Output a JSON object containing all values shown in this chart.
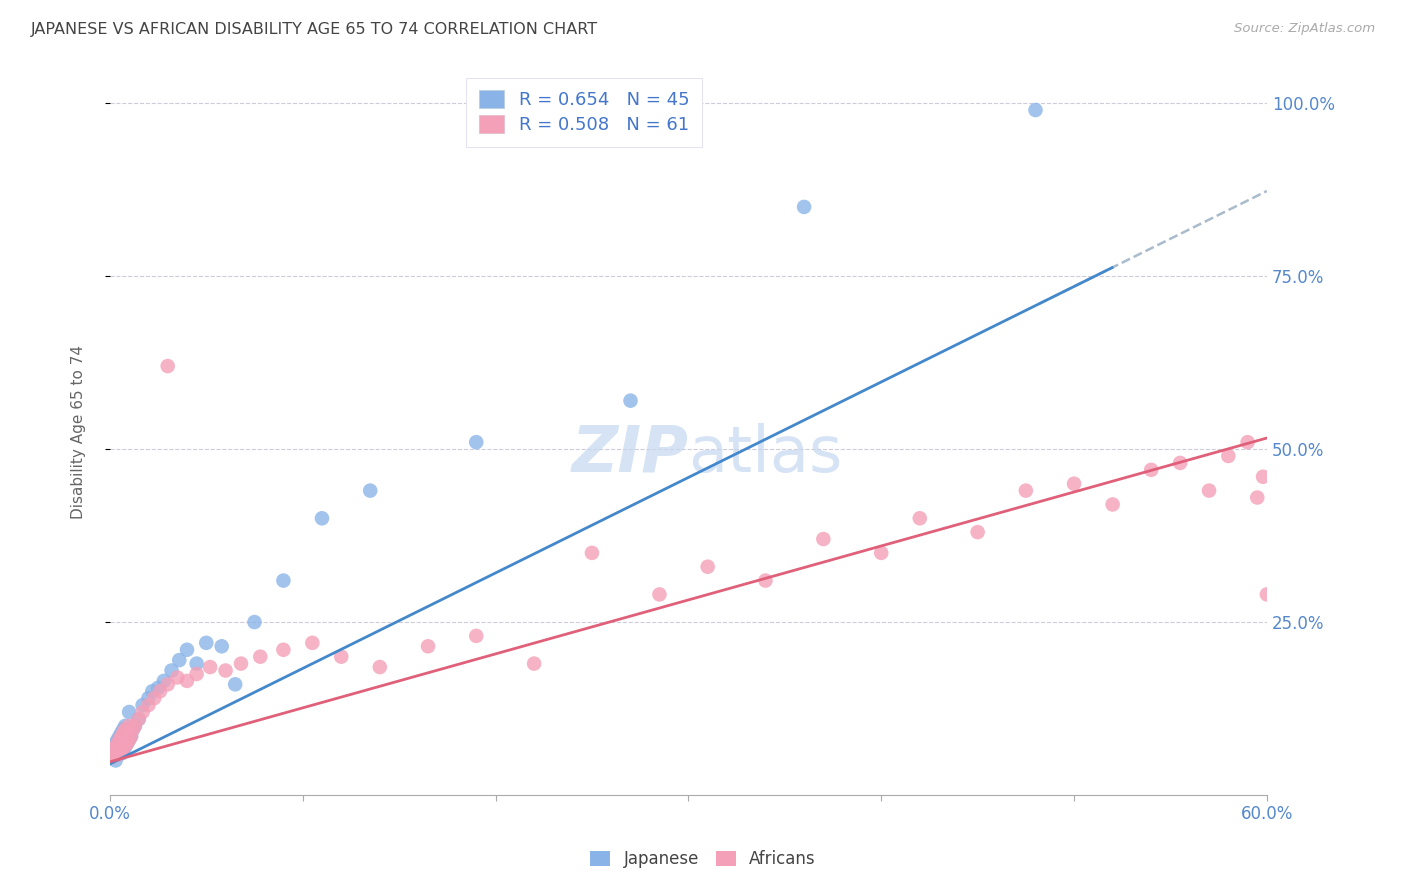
{
  "title": "JAPANESE VS AFRICAN DISABILITY AGE 65 TO 74 CORRELATION CHART",
  "source": "Source: ZipAtlas.com",
  "ylabel": "Disability Age 65 to 74",
  "xlim": [
    0.0,
    0.6
  ],
  "ylim": [
    0.0,
    1.05
  ],
  "yticks": [
    0.25,
    0.5,
    0.75,
    1.0
  ],
  "ytick_labels": [
    "25.0%",
    "50.0%",
    "75.0%",
    "100.0%"
  ],
  "xtick_labels": [
    "0.0%",
    "",
    "",
    "",
    "",
    "",
    "60.0%"
  ],
  "japanese_R": 0.654,
  "japanese_N": 45,
  "african_R": 0.508,
  "african_N": 61,
  "japanese_color": "#8ab4e8",
  "african_color": "#f4a0b8",
  "japanese_line_color": "#4488cc",
  "african_line_color": "#e0607a",
  "dashed_line_color": "#aabbcc",
  "background_color": "#ffffff",
  "grid_color": "#ccccdd",
  "watermark_color": "#c5d8f0",
  "title_color": "#444444",
  "axis_label_color": "#666666",
  "tick_label_color": "#5588cc",
  "legend_text_color": "#4477cc",
  "japanese_x": [
    0.001,
    0.002,
    0.002,
    0.003,
    0.003,
    0.003,
    0.004,
    0.004,
    0.004,
    0.005,
    0.005,
    0.005,
    0.006,
    0.006,
    0.007,
    0.007,
    0.008,
    0.008,
    0.009,
    0.01,
    0.01,
    0.011,
    0.012,
    0.013,
    0.015,
    0.017,
    0.02,
    0.022,
    0.025,
    0.028,
    0.032,
    0.036,
    0.04,
    0.045,
    0.05,
    0.058,
    0.065,
    0.075,
    0.09,
    0.11,
    0.135,
    0.19,
    0.27,
    0.36,
    0.48
  ],
  "japanese_y": [
    0.055,
    0.06,
    0.065,
    0.05,
    0.07,
    0.075,
    0.058,
    0.068,
    0.08,
    0.062,
    0.072,
    0.085,
    0.06,
    0.09,
    0.065,
    0.095,
    0.07,
    0.1,
    0.075,
    0.08,
    0.12,
    0.085,
    0.095,
    0.1,
    0.11,
    0.13,
    0.14,
    0.15,
    0.155,
    0.165,
    0.18,
    0.195,
    0.21,
    0.19,
    0.22,
    0.215,
    0.16,
    0.25,
    0.31,
    0.4,
    0.44,
    0.51,
    0.57,
    0.85,
    0.99
  ],
  "african_x": [
    0.001,
    0.002,
    0.002,
    0.003,
    0.003,
    0.004,
    0.004,
    0.005,
    0.005,
    0.006,
    0.006,
    0.007,
    0.007,
    0.008,
    0.008,
    0.009,
    0.01,
    0.01,
    0.011,
    0.012,
    0.013,
    0.015,
    0.017,
    0.02,
    0.023,
    0.026,
    0.03,
    0.035,
    0.04,
    0.045,
    0.052,
    0.06,
    0.068,
    0.078,
    0.09,
    0.105,
    0.12,
    0.14,
    0.165,
    0.19,
    0.22,
    0.25,
    0.285,
    0.31,
    0.34,
    0.37,
    0.4,
    0.42,
    0.45,
    0.475,
    0.5,
    0.52,
    0.54,
    0.555,
    0.57,
    0.58,
    0.59,
    0.595,
    0.598,
    0.6,
    0.03
  ],
  "african_y": [
    0.055,
    0.058,
    0.065,
    0.06,
    0.07,
    0.058,
    0.075,
    0.062,
    0.08,
    0.065,
    0.085,
    0.068,
    0.09,
    0.072,
    0.095,
    0.075,
    0.08,
    0.1,
    0.085,
    0.095,
    0.1,
    0.11,
    0.12,
    0.13,
    0.14,
    0.15,
    0.16,
    0.17,
    0.165,
    0.175,
    0.185,
    0.18,
    0.19,
    0.2,
    0.21,
    0.22,
    0.2,
    0.185,
    0.215,
    0.23,
    0.19,
    0.35,
    0.29,
    0.33,
    0.31,
    0.37,
    0.35,
    0.4,
    0.38,
    0.44,
    0.45,
    0.42,
    0.47,
    0.48,
    0.44,
    0.49,
    0.51,
    0.43,
    0.46,
    0.29,
    0.62
  ]
}
